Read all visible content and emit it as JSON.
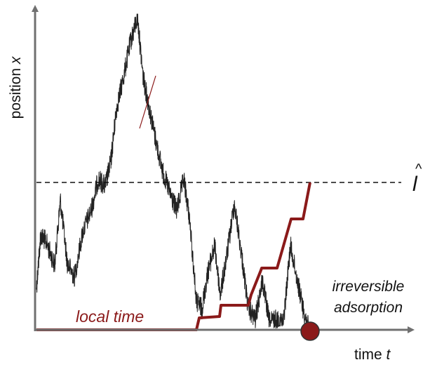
{
  "axes": {
    "y_label_text": "position ",
    "y_label_var": "x",
    "x_label_text": "time ",
    "x_label_var": "t"
  },
  "threshold": {
    "symbol": "l",
    "hat": "^"
  },
  "annotations": {
    "local_time": "local time",
    "adsorption_line1": "irreversible",
    "adsorption_line2": "adsorption"
  },
  "colors": {
    "axis": "#707070",
    "trajectory": "#222222",
    "local_time": "#8b1a1a",
    "adsorption_marker": "#8b1a1a",
    "threshold": "#111111"
  }
}
